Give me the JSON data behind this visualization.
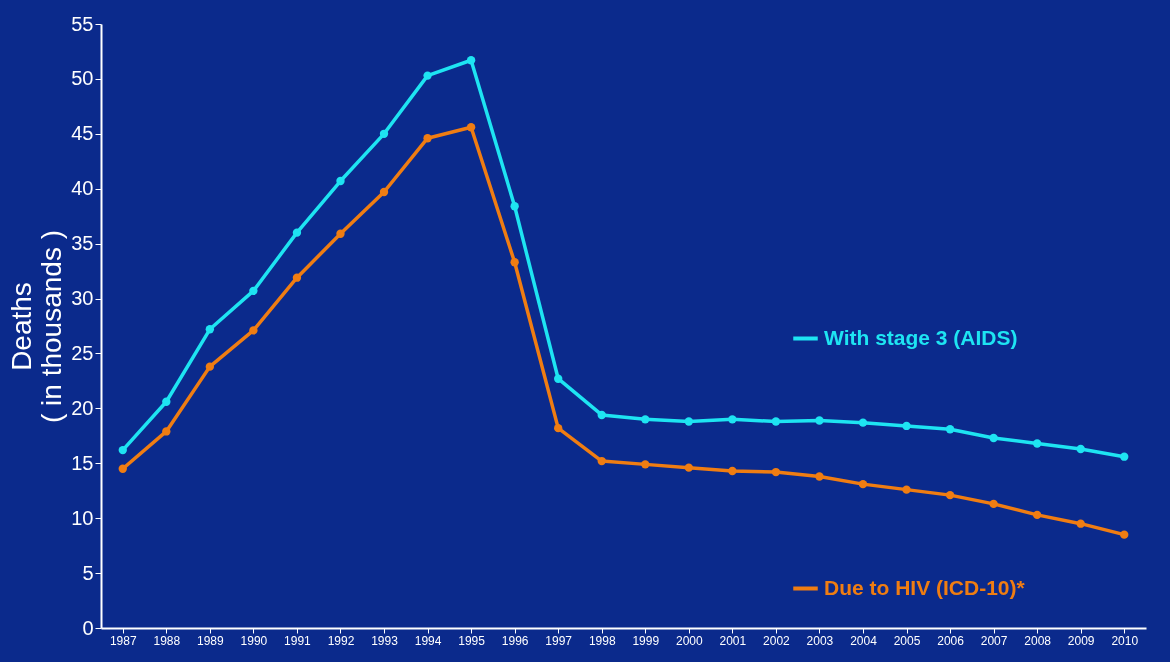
{
  "chart_data": {
    "type": "line",
    "ylabel": "Deaths\n( in thousands )",
    "categories": [
      "1987",
      "1988",
      "1989",
      "1990",
      "1991",
      "1992",
      "1993",
      "1994",
      "1995",
      "1996",
      "1997",
      "1998",
      "1999",
      "2000",
      "2001",
      "2002",
      "2003",
      "2004",
      "2005",
      "2006",
      "2007",
      "2008",
      "2009",
      "2010"
    ],
    "series": [
      {
        "name": "With stage 3 (AIDS)",
        "color": "#1ee4f2",
        "values": [
          16.2,
          20.6,
          27.2,
          30.7,
          36.0,
          40.7,
          45.0,
          50.3,
          51.7,
          38.4,
          22.7,
          19.4,
          19.0,
          18.8,
          19.0,
          18.8,
          18.9,
          18.7,
          18.4,
          18.1,
          17.3,
          16.8,
          16.3,
          15.6
        ]
      },
      {
        "name": "Due to HIV (ICD-10)*",
        "color": "#f07d12",
        "values": [
          14.5,
          17.9,
          23.8,
          27.1,
          31.9,
          35.9,
          39.7,
          44.6,
          45.6,
          33.3,
          18.2,
          15.2,
          14.9,
          14.6,
          14.3,
          14.2,
          13.8,
          13.1,
          12.6,
          12.1,
          11.3,
          10.3,
          9.5,
          8.5
        ]
      }
    ],
    "ylim": [
      0,
      55
    ],
    "yticks": [
      0,
      5,
      10,
      15,
      20,
      25,
      30,
      35,
      40,
      45,
      50,
      55
    ],
    "grid": false,
    "legend": "right",
    "marker": "circle",
    "line_style": "solid"
  }
}
